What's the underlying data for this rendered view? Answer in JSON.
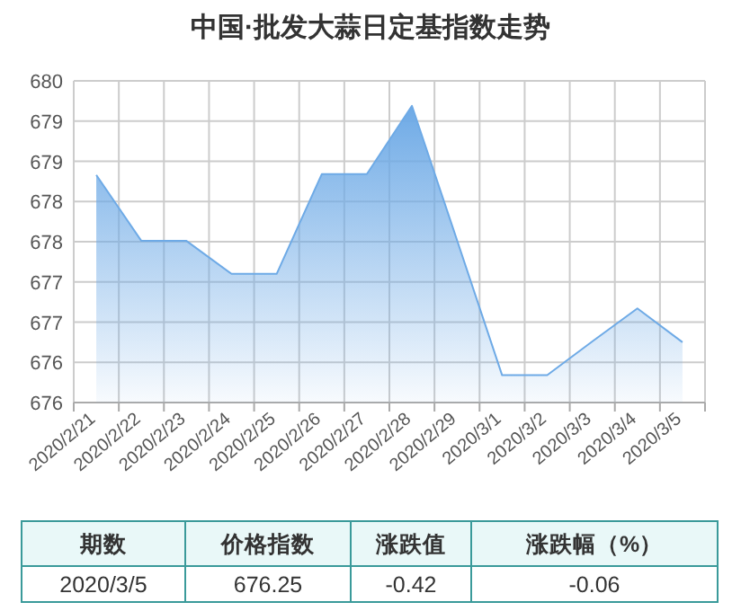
{
  "chart_data": [
    {
      "type": "area",
      "title": "中国·批发大蒜日定基指数走势",
      "categories": [
        "2020/2/21",
        "2020/2/22",
        "2020/2/23",
        "2020/2/24",
        "2020/2/25",
        "2020/2/26",
        "2020/2/27",
        "2020/2/28",
        "2020/2/29",
        "2020/3/1",
        "2020/3/2",
        "2020/3/3",
        "2020/3/4",
        "2020/3/5"
      ],
      "values": [
        678.33,
        677.51,
        677.51,
        677.1,
        677.1,
        678.34,
        678.34,
        679.19,
        677.52,
        675.84,
        675.84,
        676.26,
        676.67,
        676.25
      ],
      "color": "#6eaae6",
      "ylim": [
        675.5,
        679.5
      ],
      "yticks": [
        {
          "value": 675.5,
          "label": "676"
        },
        {
          "value": 676,
          "label": "676"
        },
        {
          "value": 676.5,
          "label": "677"
        },
        {
          "value": 677,
          "label": "677"
        },
        {
          "value": 677.5,
          "label": "678"
        },
        {
          "value": 678,
          "label": "678"
        },
        {
          "value": 678.5,
          "label": "679"
        },
        {
          "value": 679,
          "label": "679"
        },
        {
          "value": 679.5,
          "label": "680"
        }
      ],
      "grid": true
    },
    {
      "type": "other",
      "annotations": [
        "期数",
        "价格指数",
        "涨跌值",
        "涨跌幅（%）",
        "2020/3/5",
        "676.25",
        "-0.42",
        "-0.06"
      ]
    }
  ]
}
